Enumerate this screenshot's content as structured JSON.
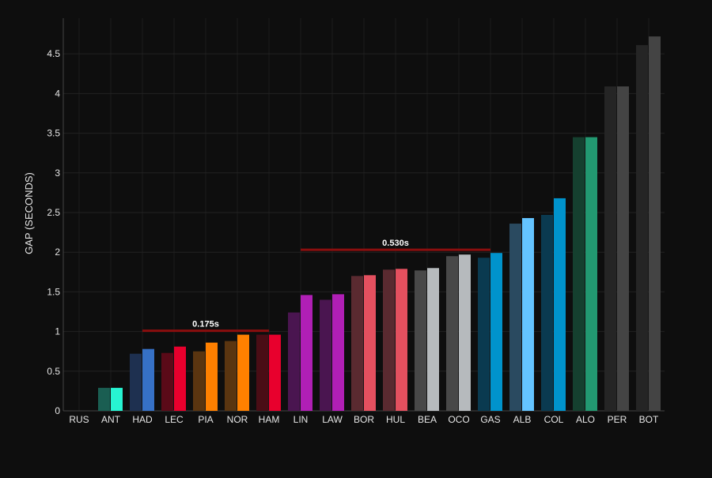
{
  "chart_data": {
    "type": "bar",
    "title": "",
    "xlabel": "",
    "ylabel": "GAP (SECONDS)",
    "ylim": [
      0,
      4.95
    ],
    "yticks": [
      "0",
      "0.5",
      "1",
      "1.5",
      "2",
      "2.5",
      "3",
      "3.5",
      "4",
      "4.5"
    ],
    "grid": true,
    "categories": [
      "RUS",
      "ANT",
      "HAD",
      "LEC",
      "PIA",
      "NOR",
      "HAM",
      "LIN",
      "LAW",
      "BOR",
      "HUL",
      "BEA",
      "OCO",
      "GAS",
      "ALB",
      "COL",
      "ALO",
      "PER",
      "BOT"
    ],
    "series": [
      {
        "values": [
          0,
          0.29,
          0.72,
          0.73,
          0.75,
          0.88,
          0.96,
          1.24,
          1.4,
          1.7,
          1.78,
          1.77,
          1.95,
          1.93,
          2.36,
          2.47,
          3.45,
          4.09,
          4.61
        ]
      },
      {
        "values": [
          0,
          0.29,
          0.78,
          0.81,
          0.86,
          0.96,
          0.96,
          1.46,
          1.47,
          1.71,
          1.79,
          1.8,
          1.97,
          1.99,
          2.43,
          2.68,
          3.45,
          4.09,
          4.72
        ]
      }
    ],
    "colors_bright": [
      "#27f4d2",
      "#27f4d2",
      "#3671c6",
      "#e8002d",
      "#ff8000",
      "#ff8000",
      "#e8002d",
      "#b01fb5",
      "#b01fb5",
      "#e4505f",
      "#e4505f",
      "#b6babd",
      "#b6babd",
      "#0093cc",
      "#64c4ff",
      "#0093cc",
      "#229971",
      "#444444",
      "#444444"
    ],
    "colors_dark": [
      "#1a5e52",
      "#1a5e52",
      "#1e3050",
      "#5a0a18",
      "#5a3510",
      "#5a3510",
      "#4a0d15",
      "#4a1550",
      "#4a1550",
      "#5a2a30",
      "#5a2a30",
      "#484848",
      "#484848",
      "#0a3a50",
      "#2a4a60",
      "#0a3a50",
      "#15402f",
      "#252525",
      "#252525"
    ],
    "annotations": [
      {
        "text": "0.175s",
        "from": "HAD",
        "to": "HAM",
        "y": 1.01
      },
      {
        "text": "0.530s",
        "from": "LIN",
        "to": "GAS",
        "y": 2.03
      }
    ],
    "annotation_color": "#8b0e0e"
  }
}
